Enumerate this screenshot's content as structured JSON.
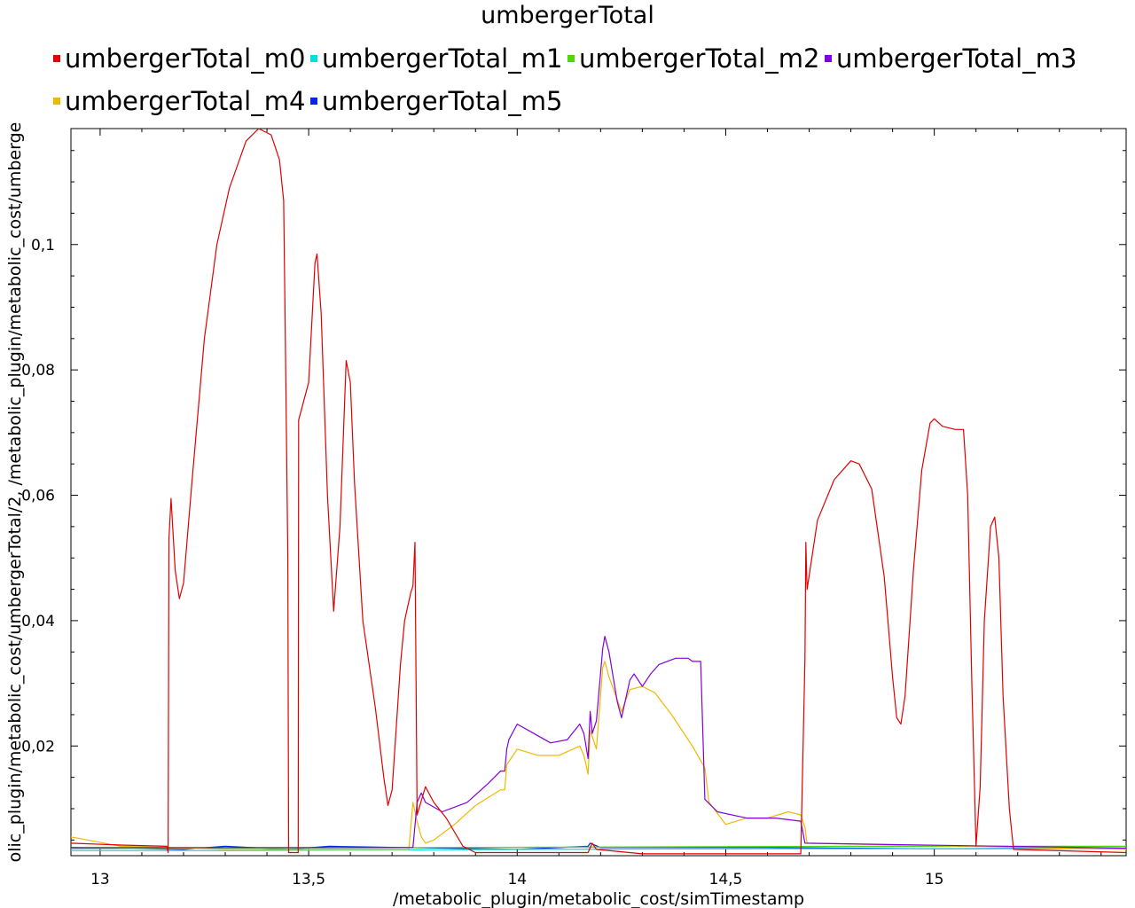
{
  "chart_data": {
    "type": "line",
    "title": "umbergerTotal",
    "xlabel": "/metabolic_plugin/metabolic_cost/simTimestamp",
    "ylabel": "olic_plugin/metabolic_cost/umbergerTotal/2, /metabolic_plugin/metabolic_cost/umberge",
    "xlim": [
      12.93,
      15.46
    ],
    "ylim": [
      0.0025,
      0.1185
    ],
    "x_ticks": [
      "13",
      "13,5",
      "14",
      "14,5",
      "15"
    ],
    "x_tick_values": [
      13.0,
      13.5,
      14.0,
      14.5,
      15.0
    ],
    "y_ticks": [
      "0,02",
      "0,04",
      "0,06",
      "0,08",
      "0,1"
    ],
    "y_tick_values": [
      0.02,
      0.04,
      0.06,
      0.08,
      0.1
    ],
    "grid": false,
    "legend_position": "top",
    "series": [
      {
        "name": "umbergerTotal_m0",
        "color": "#e00000",
        "points": [
          [
            12.93,
            0.0045
          ],
          [
            13.05,
            0.0042
          ],
          [
            13.16,
            0.004
          ],
          [
            13.163,
            0.003
          ],
          [
            13.165,
            0.053
          ],
          [
            13.17,
            0.0595
          ],
          [
            13.18,
            0.048
          ],
          [
            13.19,
            0.0435
          ],
          [
            13.2,
            0.046
          ],
          [
            13.22,
            0.062
          ],
          [
            13.25,
            0.085
          ],
          [
            13.28,
            0.1
          ],
          [
            13.31,
            0.109
          ],
          [
            13.35,
            0.1165
          ],
          [
            13.38,
            0.1185
          ],
          [
            13.41,
            0.1175
          ],
          [
            13.43,
            0.1135
          ],
          [
            13.44,
            0.107
          ],
          [
            13.445,
            0.08
          ],
          [
            13.45,
            0.05
          ],
          [
            13.452,
            0.003
          ],
          [
            13.475,
            0.003
          ],
          [
            13.476,
            0.072
          ],
          [
            13.5,
            0.078
          ],
          [
            13.515,
            0.097
          ],
          [
            13.52,
            0.0985
          ],
          [
            13.53,
            0.089
          ],
          [
            13.545,
            0.06
          ],
          [
            13.56,
            0.0415
          ],
          [
            13.575,
            0.055
          ],
          [
            13.59,
            0.0815
          ],
          [
            13.6,
            0.078
          ],
          [
            13.61,
            0.062
          ],
          [
            13.63,
            0.04
          ],
          [
            13.66,
            0.026
          ],
          [
            13.68,
            0.015
          ],
          [
            13.69,
            0.0105
          ],
          [
            13.7,
            0.013
          ],
          [
            13.72,
            0.033
          ],
          [
            13.73,
            0.04
          ],
          [
            13.745,
            0.0445
          ],
          [
            13.75,
            0.0455
          ],
          [
            13.755,
            0.0525
          ],
          [
            13.76,
            0.009
          ],
          [
            13.78,
            0.0135
          ],
          [
            13.8,
            0.011
          ],
          [
            13.83,
            0.0085
          ],
          [
            13.87,
            0.004
          ],
          [
            13.9,
            0.003
          ],
          [
            14.1,
            0.003
          ],
          [
            14.17,
            0.003
          ],
          [
            14.18,
            0.0045
          ],
          [
            14.19,
            0.0035
          ],
          [
            14.3,
            0.0028
          ],
          [
            14.68,
            0.0028
          ],
          [
            14.69,
            0.034
          ],
          [
            14.692,
            0.0525
          ],
          [
            14.695,
            0.045
          ],
          [
            14.72,
            0.056
          ],
          [
            14.76,
            0.0625
          ],
          [
            14.8,
            0.0655
          ],
          [
            14.82,
            0.065
          ],
          [
            14.85,
            0.061
          ],
          [
            14.88,
            0.047
          ],
          [
            14.9,
            0.031
          ],
          [
            14.91,
            0.0245
          ],
          [
            14.92,
            0.0235
          ],
          [
            14.93,
            0.028
          ],
          [
            14.95,
            0.048
          ],
          [
            14.97,
            0.064
          ],
          [
            14.99,
            0.0715
          ],
          [
            15.0,
            0.0722
          ],
          [
            15.02,
            0.071
          ],
          [
            15.05,
            0.0705
          ],
          [
            15.07,
            0.0705
          ],
          [
            15.08,
            0.06
          ],
          [
            15.09,
            0.03
          ],
          [
            15.1,
            0.004
          ],
          [
            15.11,
            0.0135
          ],
          [
            15.12,
            0.04
          ],
          [
            15.135,
            0.055
          ],
          [
            15.145,
            0.0565
          ],
          [
            15.155,
            0.05
          ],
          [
            15.165,
            0.028
          ],
          [
            15.18,
            0.01
          ],
          [
            15.19,
            0.0035
          ],
          [
            15.46,
            0.003
          ]
        ]
      },
      {
        "name": "umbergerTotal_m1",
        "color": "#00e0e0",
        "points": [
          [
            12.93,
            0.0033
          ],
          [
            13.3,
            0.0033
          ],
          [
            13.6,
            0.0034
          ],
          [
            14.0,
            0.0035
          ],
          [
            14.6,
            0.0036
          ],
          [
            15.0,
            0.0036
          ],
          [
            15.46,
            0.0036
          ]
        ]
      },
      {
        "name": "umbergerTotal_m2",
        "color": "#4cd80c",
        "points": [
          [
            12.93,
            0.0036
          ],
          [
            13.3,
            0.0037
          ],
          [
            13.8,
            0.0038
          ],
          [
            14.3,
            0.0039
          ],
          [
            14.8,
            0.004
          ],
          [
            15.46,
            0.004
          ]
        ]
      },
      {
        "name": "umbergerTotal_m3",
        "color": "#8000e0",
        "points": [
          [
            12.93,
            0.0038
          ],
          [
            13.75,
            0.0038
          ],
          [
            13.76,
            0.011
          ],
          [
            13.77,
            0.0125
          ],
          [
            13.78,
            0.011
          ],
          [
            13.82,
            0.0095
          ],
          [
            13.88,
            0.011
          ],
          [
            13.93,
            0.014
          ],
          [
            13.96,
            0.016
          ],
          [
            13.97,
            0.016
          ],
          [
            13.975,
            0.0195
          ],
          [
            13.98,
            0.021
          ],
          [
            14.0,
            0.0235
          ],
          [
            14.04,
            0.022
          ],
          [
            14.08,
            0.0205
          ],
          [
            14.12,
            0.021
          ],
          [
            14.15,
            0.0235
          ],
          [
            14.16,
            0.022
          ],
          [
            14.17,
            0.018
          ],
          [
            14.175,
            0.0255
          ],
          [
            14.18,
            0.022
          ],
          [
            14.19,
            0.024
          ],
          [
            14.205,
            0.0355
          ],
          [
            14.21,
            0.0375
          ],
          [
            14.22,
            0.035
          ],
          [
            14.24,
            0.027
          ],
          [
            14.25,
            0.0245
          ],
          [
            14.27,
            0.0305
          ],
          [
            14.28,
            0.0315
          ],
          [
            14.3,
            0.0295
          ],
          [
            14.32,
            0.0315
          ],
          [
            14.34,
            0.033
          ],
          [
            14.38,
            0.034
          ],
          [
            14.41,
            0.034
          ],
          [
            14.42,
            0.0335
          ],
          [
            14.44,
            0.0335
          ],
          [
            14.45,
            0.0115
          ],
          [
            14.48,
            0.0095
          ],
          [
            14.55,
            0.0085
          ],
          [
            14.62,
            0.0085
          ],
          [
            14.68,
            0.008
          ],
          [
            14.69,
            0.0045
          ],
          [
            15.46,
            0.0037
          ]
        ]
      },
      {
        "name": "umbergerTotal_m4",
        "color": "#f0b800",
        "points": [
          [
            12.93,
            0.0055
          ],
          [
            13.05,
            0.004
          ],
          [
            13.3,
            0.0035
          ],
          [
            13.74,
            0.0035
          ],
          [
            13.75,
            0.011
          ],
          [
            13.76,
            0.008
          ],
          [
            13.77,
            0.0055
          ],
          [
            13.78,
            0.0045
          ],
          [
            13.8,
            0.005
          ],
          [
            13.85,
            0.0075
          ],
          [
            13.9,
            0.0105
          ],
          [
            13.96,
            0.013
          ],
          [
            13.97,
            0.013
          ],
          [
            13.975,
            0.017
          ],
          [
            14.0,
            0.0195
          ],
          [
            14.05,
            0.0185
          ],
          [
            14.1,
            0.0185
          ],
          [
            14.15,
            0.02
          ],
          [
            14.16,
            0.0185
          ],
          [
            14.17,
            0.0155
          ],
          [
            14.175,
            0.0225
          ],
          [
            14.19,
            0.0195
          ],
          [
            14.205,
            0.0325
          ],
          [
            14.21,
            0.0335
          ],
          [
            14.22,
            0.031
          ],
          [
            14.25,
            0.0255
          ],
          [
            14.27,
            0.029
          ],
          [
            14.3,
            0.0295
          ],
          [
            14.33,
            0.0285
          ],
          [
            14.37,
            0.025
          ],
          [
            14.42,
            0.02
          ],
          [
            14.45,
            0.0165
          ],
          [
            14.46,
            0.011
          ],
          [
            14.5,
            0.0075
          ],
          [
            14.55,
            0.0085
          ],
          [
            14.6,
            0.0085
          ],
          [
            14.65,
            0.0095
          ],
          [
            14.68,
            0.009
          ],
          [
            14.69,
            0.007
          ],
          [
            14.695,
            0.0045
          ],
          [
            15.46,
            0.0035
          ]
        ]
      },
      {
        "name": "umbergerTotal_m5",
        "color": "#0028e0",
        "points": [
          [
            12.93,
            0.0038
          ],
          [
            13.2,
            0.0035
          ],
          [
            13.3,
            0.004
          ],
          [
            13.45,
            0.0035
          ],
          [
            13.55,
            0.004
          ],
          [
            14.0,
            0.0035
          ],
          [
            14.17,
            0.004
          ],
          [
            14.175,
            0.0045
          ],
          [
            14.2,
            0.0038
          ],
          [
            14.6,
            0.0038
          ],
          [
            15.0,
            0.0036
          ],
          [
            15.46,
            0.0037
          ]
        ]
      }
    ]
  }
}
